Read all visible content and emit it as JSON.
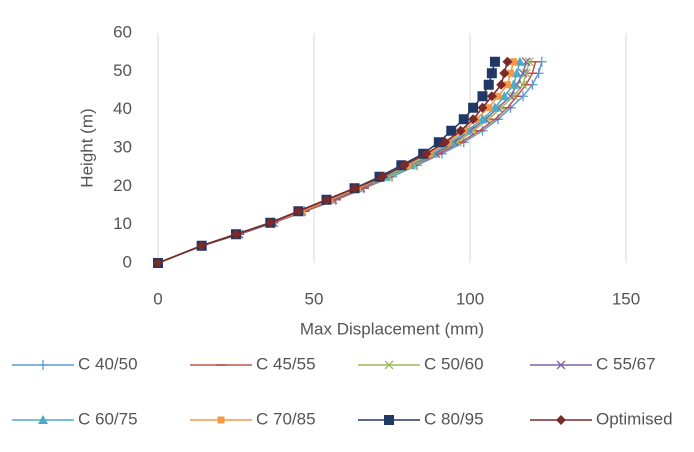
{
  "chart_data": {
    "type": "line",
    "x_label": "Max Displacement (mm)",
    "y_label": "Height (m)",
    "y": [
      0,
      4.5,
      7.5,
      10.5,
      13.5,
      16.5,
      19.5,
      22.5,
      25.5,
      28.5,
      31.5,
      34.5,
      37.5,
      40.5,
      43.5,
      46.5,
      49.5,
      52.5
    ],
    "series": [
      {
        "name": "C 40/50",
        "color": "#5b9bd5",
        "marker": "plus",
        "x": [
          0,
          14,
          26,
          37,
          47,
          57,
          66,
          75,
          83,
          91,
          98,
          104,
          109,
          113,
          117,
          120,
          122,
          123
        ]
      },
      {
        "name": "C 45/55",
        "color": "#c0504d",
        "marker": "dash",
        "x": [
          0,
          14,
          26,
          37,
          47,
          57,
          66,
          74,
          82,
          90,
          97,
          103,
          108,
          112,
          115,
          118,
          120,
          121
        ]
      },
      {
        "name": "C 50/60",
        "color": "#9bbb59",
        "marker": "cross",
        "x": [
          0,
          14,
          26,
          37,
          46,
          56,
          65,
          74,
          82,
          89,
          96,
          101,
          106,
          110,
          114,
          117,
          118,
          119
        ]
      },
      {
        "name": "C 55/67",
        "color": "#8064a2",
        "marker": "cross",
        "x": [
          0,
          14,
          26,
          37,
          46,
          56,
          65,
          73,
          81,
          89,
          95,
          100,
          105,
          109,
          113,
          115,
          117,
          118
        ]
      },
      {
        "name": "C 60/75",
        "color": "#4bacc6",
        "marker": "triangle",
        "x": [
          0,
          14,
          25,
          36,
          46,
          55,
          64,
          73,
          81,
          88,
          94,
          99,
          104,
          108,
          111,
          114,
          115,
          116
        ]
      },
      {
        "name": "C 70/85",
        "color": "#f79646",
        "marker": "square",
        "x": [
          0,
          14,
          25,
          36,
          46,
          55,
          64,
          72,
          80,
          87,
          93,
          98,
          102,
          106,
          109,
          112,
          113,
          114
        ]
      },
      {
        "name": "C 80/95",
        "color": "#1f3864",
        "marker": "bigsquare",
        "x": [
          0,
          14,
          25,
          36,
          45,
          54,
          63,
          71,
          78,
          85,
          90,
          94,
          98,
          101,
          104,
          106,
          107,
          108
        ]
      },
      {
        "name": "Optimised",
        "color": "#7b2a2a",
        "marker": "diamond",
        "x": [
          0,
          14,
          25,
          36,
          45,
          54,
          63,
          72,
          79,
          86,
          92,
          97,
          101,
          104,
          107,
          110,
          111,
          112
        ]
      }
    ],
    "xlim": [
      0,
      150
    ],
    "xticks": [
      0,
      50,
      100,
      150
    ],
    "ylim": [
      0,
      60
    ],
    "yticks": [
      0,
      10,
      20,
      30,
      40,
      50,
      60
    ],
    "grid": "vertical",
    "legend": "bottom"
  }
}
